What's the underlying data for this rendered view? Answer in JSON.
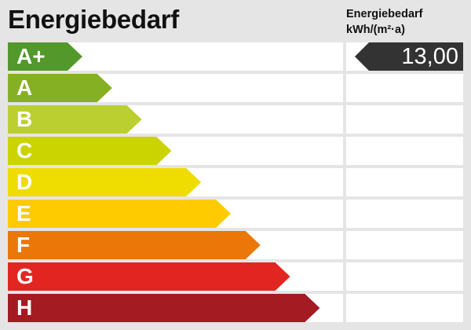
{
  "title": "Energiebedarf",
  "column_header": {
    "line1": "Energiebedarf",
    "line2": "kWh/(m²·a)"
  },
  "classes": [
    {
      "label": "A+",
      "color": "#52982a"
    },
    {
      "label": "A",
      "color": "#86b024"
    },
    {
      "label": "B",
      "color": "#bbd030"
    },
    {
      "label": "C",
      "color": "#cbd400"
    },
    {
      "label": "D",
      "color": "#efdc00"
    },
    {
      "label": "E",
      "color": "#fdcb00"
    },
    {
      "label": "F",
      "color": "#ea7708"
    },
    {
      "label": "G",
      "color": "#e32522"
    },
    {
      "label": "H",
      "color": "#a41b22"
    }
  ],
  "indicator": {
    "value": "13,00",
    "class_index": 0,
    "color": "#333333"
  }
}
